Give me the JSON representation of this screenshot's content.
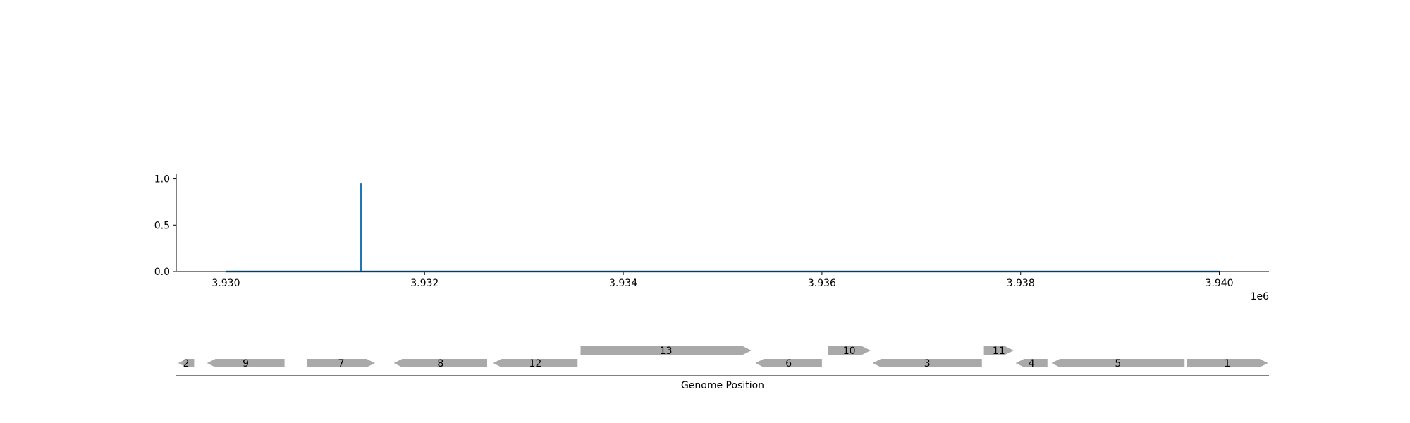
{
  "chart_data": [
    {
      "type": "line",
      "title": "",
      "xlabel": "",
      "ylabel": "",
      "x_offset_label": "1e6",
      "xlim": [
        3929500,
        3940500
      ],
      "ylim": [
        0,
        1.05
      ],
      "x_ticks": [
        3930000,
        3932000,
        3934000,
        3936000,
        3938000,
        3940000
      ],
      "x_tick_labels": [
        "3.930",
        "3.932",
        "3.934",
        "3.936",
        "3.938",
        "3.940"
      ],
      "y_ticks": [
        0.0,
        0.5,
        1.0
      ],
      "y_tick_labels": [
        "0.0",
        "0.5",
        "1.0"
      ],
      "grid": false,
      "color": "#1f77b4",
      "series": [
        {
          "x": [
            3930000,
            3931360,
            3931360,
            3931360,
            3940000
          ],
          "y": [
            0,
            0,
            0.95,
            0,
            0
          ]
        }
      ]
    },
    {
      "type": "gene_map",
      "xlabel": "Genome Position",
      "xlim": [
        3929500,
        3940500
      ],
      "color": "#a9a9a9",
      "genes": [
        {
          "label": "2",
          "start": 3929520,
          "end": 3929680,
          "strand": -1,
          "row": 0
        },
        {
          "label": "9",
          "start": 3929810,
          "end": 3930590,
          "strand": -1,
          "row": 0
        },
        {
          "label": "7",
          "start": 3930820,
          "end": 3931500,
          "strand": 1,
          "row": 0
        },
        {
          "label": "8",
          "start": 3931690,
          "end": 3932630,
          "strand": -1,
          "row": 0
        },
        {
          "label": "12",
          "start": 3932690,
          "end": 3933540,
          "strand": -1,
          "row": 0
        },
        {
          "label": "13",
          "start": 3933570,
          "end": 3935290,
          "strand": 1,
          "row": 1
        },
        {
          "label": "6",
          "start": 3935330,
          "end": 3936000,
          "strand": -1,
          "row": 0
        },
        {
          "label": "10",
          "start": 3936060,
          "end": 3936490,
          "strand": 1,
          "row": 1
        },
        {
          "label": "3",
          "start": 3936510,
          "end": 3937610,
          "strand": -1,
          "row": 0
        },
        {
          "label": "11",
          "start": 3937630,
          "end": 3937930,
          "strand": 1,
          "row": 1
        },
        {
          "label": "4",
          "start": 3937950,
          "end": 3938270,
          "strand": -1,
          "row": 0
        },
        {
          "label": "5",
          "start": 3938310,
          "end": 3939650,
          "strand": -1,
          "row": 0
        },
        {
          "label": "1",
          "start": 3939670,
          "end": 3940490,
          "strand": 1,
          "row": 0
        }
      ]
    }
  ]
}
